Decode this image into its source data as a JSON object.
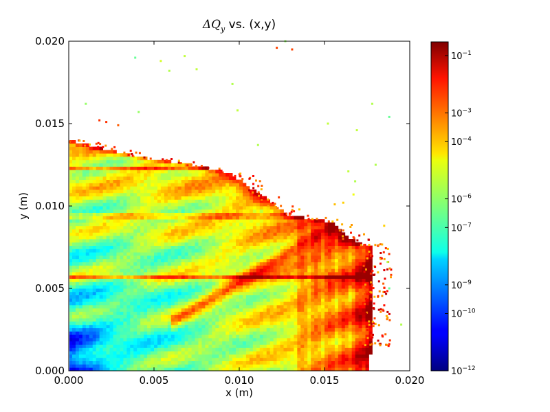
{
  "chart_data": {
    "type": "heatmap",
    "title": "ΔQ",
    "title_subscript": "y",
    "title_suffix": " vs. (x,y)",
    "xlabel": "x (m)",
    "ylabel": "y (m)",
    "xlim": [
      0.0,
      0.02
    ],
    "ylim": [
      0.0,
      0.02
    ],
    "x_ticks": [
      "0.000",
      "0.005",
      "0.010",
      "0.015",
      "0.020"
    ],
    "y_ticks": [
      "0.000",
      "0.005",
      "0.010",
      "0.015",
      "0.020"
    ],
    "colorbar": {
      "scale": "log",
      "colormap": "jet",
      "range": [
        1e-12,
        0.3
      ],
      "ticks": [
        {
          "label": "10",
          "exp": "−1",
          "value": 0.1
        },
        {
          "label": "10",
          "exp": "−3",
          "value": 0.001
        },
        {
          "label": "10",
          "exp": "−4",
          "value": 0.0001
        },
        {
          "label": "10",
          "exp": "−6",
          "value": 1e-06
        },
        {
          "label": "10",
          "exp": "−7",
          "value": 1e-07
        },
        {
          "label": "10",
          "exp": "−9",
          "value": 1e-09
        },
        {
          "label": "10",
          "exp": "−10",
          "value": 1e-10
        },
        {
          "label": "10",
          "exp": "−12",
          "value": 1e-12
        }
      ]
    },
    "grid": false,
    "boundary_xmax_vs_y": [
      [
        0.0,
        0.0175
      ],
      [
        0.001,
        0.0177
      ],
      [
        0.002,
        0.0178
      ],
      [
        0.004,
        0.0178
      ],
      [
        0.006,
        0.0178
      ],
      [
        0.0075,
        0.0177
      ],
      [
        0.008,
        0.0165
      ],
      [
        0.0088,
        0.0158
      ],
      [
        0.009,
        0.0155
      ],
      [
        0.0095,
        0.0128
      ],
      [
        0.0105,
        0.0115
      ],
      [
        0.012,
        0.0095
      ],
      [
        0.0125,
        0.0072
      ],
      [
        0.013,
        0.004
      ],
      [
        0.014,
        0.0
      ]
    ],
    "scatter_points": [
      {
        "x": 0.0039,
        "y": 0.019,
        "v": 3e-07
      },
      {
        "x": 0.0054,
        "y": 0.0188,
        "v": 5e-06
      },
      {
        "x": 0.0068,
        "y": 0.0191,
        "v": 3e-06
      },
      {
        "x": 0.0059,
        "y": 0.0182,
        "v": 2e-06
      },
      {
        "x": 0.0075,
        "y": 0.0183,
        "v": 3e-06
      },
      {
        "x": 0.001,
        "y": 0.0162,
        "v": 1e-06
      },
      {
        "x": 0.0041,
        "y": 0.0157,
        "v": 1e-06
      },
      {
        "x": 0.0096,
        "y": 0.0174,
        "v": 2e-06
      },
      {
        "x": 0.0099,
        "y": 0.0158,
        "v": 3e-06
      },
      {
        "x": 0.0111,
        "y": 0.0137,
        "v": 2e-06
      },
      {
        "x": 0.0122,
        "y": 0.0196,
        "v": 0.002
      },
      {
        "x": 0.0127,
        "y": 0.02,
        "v": 1e-06
      },
      {
        "x": 0.0131,
        "y": 0.0195,
        "v": 0.002
      },
      {
        "x": 0.0152,
        "y": 0.015,
        "v": 3e-06
      },
      {
        "x": 0.0169,
        "y": 0.0146,
        "v": 3e-06
      },
      {
        "x": 0.0178,
        "y": 0.0162,
        "v": 2e-06
      },
      {
        "x": 0.0188,
        "y": 0.0154,
        "v": 3e-07
      },
      {
        "x": 0.0164,
        "y": 0.0121,
        "v": 3e-06
      },
      {
        "x": 0.0168,
        "y": 0.0115,
        "v": 2e-06
      },
      {
        "x": 0.0167,
        "y": 0.0107,
        "v": 1e-05
      },
      {
        "x": 0.018,
        "y": 0.0125,
        "v": 2e-06
      },
      {
        "x": 0.0185,
        "y": 0.0088,
        "v": 5e-05
      },
      {
        "x": 0.0187,
        "y": 0.0066,
        "v": 2e-06
      },
      {
        "x": 0.0188,
        "y": 0.005,
        "v": 3e-07
      },
      {
        "x": 0.0195,
        "y": 0.0028,
        "v": 2e-06
      },
      {
        "x": 0.0156,
        "y": 0.0101,
        "v": 8e-05
      },
      {
        "x": 0.0161,
        "y": 0.0102,
        "v": 5e-05
      },
      {
        "x": 0.0018,
        "y": 0.0152,
        "v": 0.003
      },
      {
        "x": 0.0022,
        "y": 0.0151,
        "v": 0.003
      },
      {
        "x": 0.0029,
        "y": 0.0149,
        "v": 0.001
      }
    ]
  }
}
